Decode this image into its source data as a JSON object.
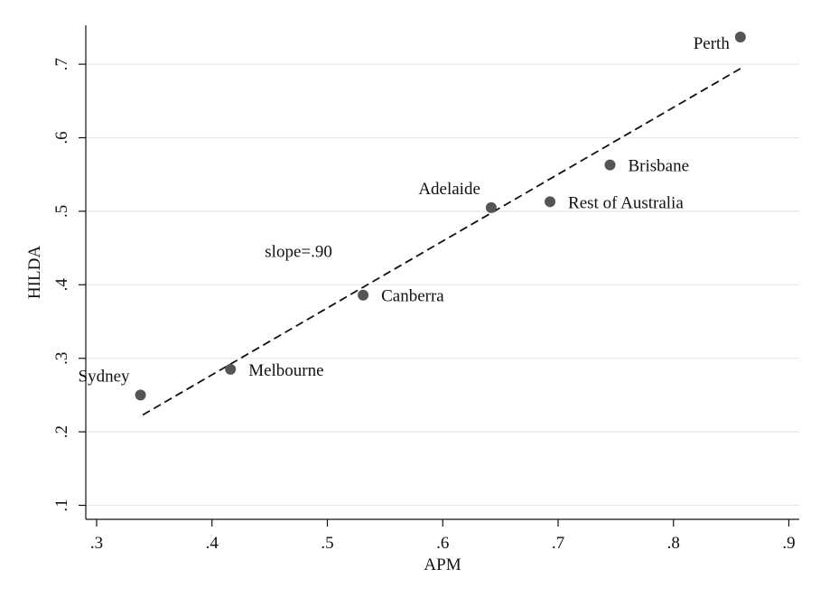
{
  "chart_data": {
    "type": "scatter",
    "xlabel": "APM",
    "ylabel": "HILDA",
    "xlim": [
      0.3,
      0.9
    ],
    "ylim": [
      0.1,
      0.75
    ],
    "x_ticks": [
      0.3,
      0.4,
      0.5,
      0.6,
      0.7,
      0.8,
      0.9
    ],
    "x_tick_labels": [
      ".3",
      ".4",
      ".5",
      ".6",
      ".7",
      ".8",
      ".9"
    ],
    "y_ticks": [
      0.1,
      0.2,
      0.3,
      0.4,
      0.5,
      0.6,
      0.7
    ],
    "y_tick_labels": [
      ".1",
      ".2",
      ".3",
      ".4",
      ".5",
      ".6",
      ".7"
    ],
    "grid": "horizontal",
    "points": [
      {
        "label": "Sydney",
        "x": 0.338,
        "y": 0.25,
        "label_pos": "above-left"
      },
      {
        "label": "Melbourne",
        "x": 0.416,
        "y": 0.285,
        "label_pos": "right"
      },
      {
        "label": "Canberra",
        "x": 0.531,
        "y": 0.386,
        "label_pos": "right"
      },
      {
        "label": "Adelaide",
        "x": 0.642,
        "y": 0.505,
        "label_pos": "above-left"
      },
      {
        "label": "Rest of Australia",
        "x": 0.693,
        "y": 0.513,
        "label_pos": "right"
      },
      {
        "label": "Brisbane",
        "x": 0.745,
        "y": 0.563,
        "label_pos": "right"
      },
      {
        "label": "Perth",
        "x": 0.858,
        "y": 0.737,
        "label_pos": "left"
      }
    ],
    "fit_line": {
      "style": "dashed",
      "x": [
        0.34,
        0.858
      ],
      "y": [
        0.223,
        0.694
      ]
    },
    "annotation": {
      "text": "slope=.90",
      "x": 0.475,
      "y": 0.438
    },
    "colors": {
      "points": "#555555",
      "line": "#111111",
      "grid": "#e6e6e6",
      "axis": "#111111"
    }
  }
}
